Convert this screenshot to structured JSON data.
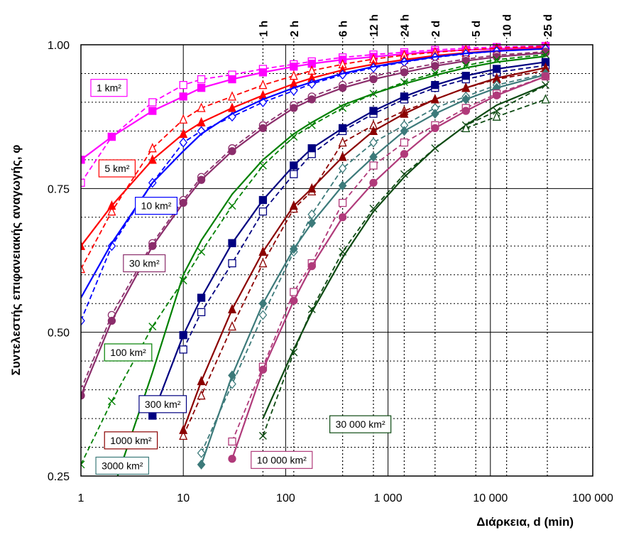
{
  "chart_data": {
    "type": "line",
    "xlabel": "Διάρκεια, d (min)",
    "ylabel": "Συντελεστής επιφανειακής αναγωγής, φ",
    "ylabel_symbol": "φ",
    "xscale": "log",
    "xlim": [
      1,
      100000
    ],
    "ylim": [
      0.25,
      1.0
    ],
    "grid": true,
    "x_ticks": [
      {
        "value": 1,
        "label": "1"
      },
      {
        "value": 10,
        "label": "10"
      },
      {
        "value": 100,
        "label": "100"
      },
      {
        "value": 1000,
        "label": "1 000"
      },
      {
        "value": 10000,
        "label": "10 000"
      },
      {
        "value": 100000,
        "label": "100 000"
      }
    ],
    "y_ticks": [
      {
        "value": 0.25,
        "label": "0.25"
      },
      {
        "value": 0.5,
        "label": "0.50"
      },
      {
        "value": 0.75,
        "label": "0.75"
      },
      {
        "value": 1.0,
        "label": "1.00"
      }
    ],
    "duration_markers": [
      {
        "value": 60,
        "label": "1 h"
      },
      {
        "value": 120,
        "label": "2 h"
      },
      {
        "value": 360,
        "label": "6 h"
      },
      {
        "value": 720,
        "label": "12 h"
      },
      {
        "value": 1440,
        "label": "24 h"
      },
      {
        "value": 2880,
        "label": "2 d"
      },
      {
        "value": 7200,
        "label": "5 d"
      },
      {
        "value": 14400,
        "label": "10 d"
      },
      {
        "value": 36000,
        "label": "25 d"
      }
    ],
    "series": [
      {
        "label": "1 km²",
        "color": "#ff00ff",
        "solid": {
          "marker": "square-filled",
          "x": [
            1,
            2,
            5,
            10,
            15,
            30,
            60,
            120,
            180,
            360,
            720,
            1440,
            2880,
            5760,
            11520,
            34560
          ],
          "y": [
            0.8,
            0.84,
            0.885,
            0.91,
            0.925,
            0.94,
            0.952,
            0.962,
            0.967,
            0.974,
            0.979,
            0.984,
            0.988,
            0.991,
            0.993,
            0.996
          ]
        },
        "dashed": {
          "marker": "square-open",
          "x": [
            1,
            2,
            5,
            10,
            15,
            30,
            60,
            120,
            180,
            360,
            720,
            1440,
            2880,
            5760,
            11520,
            34560
          ],
          "y": [
            0.76,
            0.84,
            0.9,
            0.93,
            0.94,
            0.948,
            0.958,
            0.966,
            0.971,
            0.978,
            0.983,
            0.987,
            0.991,
            0.994,
            0.996,
            0.998
          ]
        },
        "label_pos": [
          1.25,
          0.925
        ]
      },
      {
        "label": "5 km²",
        "color": "#ff0000",
        "solid": {
          "marker": "triangle-filled",
          "x": [
            1,
            2,
            5,
            10,
            15,
            30,
            60,
            120,
            180,
            360,
            720,
            1440,
            2880,
            5760,
            11520,
            34560
          ],
          "y": [
            0.65,
            0.72,
            0.8,
            0.845,
            0.865,
            0.89,
            0.912,
            0.932,
            0.942,
            0.956,
            0.966,
            0.974,
            0.981,
            0.986,
            0.99,
            0.994
          ]
        },
        "dashed": {
          "marker": "triangle-open",
          "x": [
            1,
            2,
            5,
            10,
            15,
            30,
            60,
            120,
            180,
            360,
            720,
            1440,
            2880,
            5760,
            11520,
            34560
          ],
          "y": [
            0.61,
            0.71,
            0.82,
            0.87,
            0.89,
            0.91,
            0.93,
            0.946,
            0.955,
            0.966,
            0.975,
            0.982,
            0.987,
            0.991,
            0.994,
            0.997
          ]
        },
        "label_pos": [
          1.5,
          0.785
        ]
      },
      {
        "label": "10 km²",
        "color": "#0000ff",
        "solid": {
          "marker": "none",
          "x": [
            1,
            2,
            5,
            10,
            15,
            30,
            60,
            120,
            180,
            360,
            720,
            1440,
            2880,
            5760,
            11520,
            34560
          ],
          "y": [
            0.56,
            0.655,
            0.76,
            0.815,
            0.845,
            0.88,
            0.905,
            0.925,
            0.935,
            0.95,
            0.962,
            0.971,
            0.979,
            0.985,
            0.989,
            0.993
          ]
        },
        "dashed": {
          "marker": "diamond-open",
          "x": [
            1,
            2,
            5,
            10,
            15,
            30,
            60,
            120,
            180,
            360,
            720,
            1440,
            2880,
            5760,
            11520,
            34560
          ],
          "y": [
            0.52,
            0.65,
            0.76,
            0.83,
            0.85,
            0.875,
            0.9,
            0.92,
            0.932,
            0.948,
            0.96,
            0.97,
            0.978,
            0.984,
            0.989,
            0.993
          ]
        },
        "label_pos": [
          3.4,
          0.72
        ]
      },
      {
        "label": "30 km²",
        "color": "#8b2d6b",
        "solid": {
          "marker": "circle-filled",
          "x": [
            1,
            2,
            5,
            10,
            15,
            30,
            60,
            120,
            180,
            360,
            720,
            1440,
            2880,
            5760,
            11520,
            34560
          ],
          "y": [
            0.39,
            0.52,
            0.65,
            0.725,
            0.765,
            0.815,
            0.855,
            0.89,
            0.905,
            0.925,
            0.94,
            0.952,
            0.963,
            0.972,
            0.979,
            0.986
          ]
        },
        "dashed": {
          "marker": "circle-open",
          "x": [
            1,
            2,
            5,
            10,
            15,
            30,
            60,
            120,
            180,
            360,
            720,
            1440,
            2880,
            5760,
            11520,
            34560
          ],
          "y": [
            0.4,
            0.53,
            0.655,
            0.73,
            0.77,
            0.82,
            0.86,
            0.895,
            0.91,
            0.93,
            0.945,
            0.957,
            0.967,
            0.975,
            0.982,
            0.988
          ]
        },
        "label_pos": [
          2.6,
          0.62
        ]
      },
      {
        "label": "100 km²",
        "color": "#008000",
        "solid": {
          "marker": "none",
          "x": [
            2,
            5,
            10,
            15,
            30,
            60,
            120,
            180,
            360,
            720,
            1440,
            2880,
            5760,
            11520,
            34560
          ],
          "y": [
            0.22,
            0.43,
            0.6,
            0.66,
            0.74,
            0.8,
            0.845,
            0.865,
            0.895,
            0.915,
            0.932,
            0.947,
            0.96,
            0.97,
            0.98
          ]
        },
        "dashed": {
          "marker": "x-mark",
          "x": [
            1,
            2,
            5,
            10,
            15,
            30,
            60,
            120,
            180,
            360,
            720,
            1440,
            2880,
            5760,
            11520,
            34560
          ],
          "y": [
            0.27,
            0.38,
            0.51,
            0.59,
            0.64,
            0.72,
            0.79,
            0.84,
            0.86,
            0.89,
            0.915,
            0.935,
            0.951,
            0.964,
            0.974,
            0.983
          ]
        },
        "label_pos": [
          1.7,
          0.465
        ]
      },
      {
        "label": "300 km²",
        "color": "#000080",
        "solid": {
          "marker": "square-filled",
          "x": [
            5,
            10,
            15,
            30,
            60,
            120,
            180,
            360,
            720,
            1440,
            2880,
            5760,
            11520,
            34560
          ],
          "y": [
            0.355,
            0.495,
            0.56,
            0.655,
            0.73,
            0.79,
            0.82,
            0.855,
            0.885,
            0.91,
            0.93,
            0.946,
            0.958,
            0.97
          ]
        },
        "dashed": {
          "marker": "square-open",
          "x": [
            10,
            15,
            30,
            60,
            120,
            180,
            360,
            720,
            1440,
            2880,
            5760,
            11520,
            34560
          ],
          "y": [
            0.47,
            0.535,
            0.62,
            0.71,
            0.775,
            0.81,
            0.85,
            0.88,
            0.905,
            0.925,
            0.94,
            0.952,
            0.964
          ]
        },
        "label_pos": [
          3.7,
          0.375
        ]
      },
      {
        "label": "1000 km²",
        "color": "#8b0000",
        "solid": {
          "marker": "triangle-filled",
          "x": [
            10,
            15,
            30,
            60,
            120,
            180,
            360,
            720,
            1440,
            2880,
            5760,
            11520,
            34560
          ],
          "y": [
            0.33,
            0.415,
            0.54,
            0.64,
            0.72,
            0.75,
            0.805,
            0.85,
            0.88,
            0.905,
            0.925,
            0.942,
            0.96
          ]
        },
        "dashed": {
          "marker": "triangle-open",
          "x": [
            10,
            15,
            30,
            60,
            120,
            180,
            360,
            720,
            1440,
            2880,
            5760,
            11520,
            34560
          ],
          "y": [
            0.32,
            0.39,
            0.51,
            0.62,
            0.715,
            0.745,
            0.83,
            0.86,
            0.885,
            0.905,
            0.925,
            0.94,
            0.955
          ]
        },
        "label_pos": [
          1.7,
          0.312
        ]
      },
      {
        "label": "3000 km²",
        "color": "#3c7a7a",
        "solid": {
          "marker": "diamond-filled",
          "x": [
            15,
            30,
            60,
            120,
            180,
            360,
            720,
            1440,
            2880,
            5760,
            11520,
            34560
          ],
          "y": [
            0.27,
            0.425,
            0.55,
            0.645,
            0.69,
            0.755,
            0.805,
            0.85,
            0.88,
            0.905,
            0.925,
            0.948
          ]
        },
        "dashed": {
          "marker": "diamond-open",
          "x": [
            15,
            30,
            60,
            120,
            180,
            360,
            720,
            1440,
            2880,
            5760,
            11520,
            34560
          ],
          "y": [
            0.29,
            0.41,
            0.53,
            0.64,
            0.705,
            0.785,
            0.83,
            0.86,
            0.89,
            0.91,
            0.93,
            0.95
          ]
        },
        "label_pos": [
          1.4,
          0.268
        ]
      },
      {
        "label": "10 000 km²",
        "color": "#b03a7a",
        "solid": {
          "marker": "circle-filled",
          "x": [
            30,
            60,
            120,
            180,
            360,
            720,
            1440,
            2880,
            5760,
            11520,
            34560
          ],
          "y": [
            0.28,
            0.435,
            0.555,
            0.615,
            0.7,
            0.76,
            0.81,
            0.855,
            0.885,
            0.912,
            0.945
          ]
        },
        "dashed": {
          "marker": "square-open",
          "x": [
            30,
            60,
            120,
            180,
            360,
            720,
            1440,
            2880,
            5760,
            11520,
            34560
          ],
          "y": [
            0.31,
            0.44,
            0.57,
            0.62,
            0.725,
            0.79,
            0.83,
            0.86,
            0.89,
            0.915,
            0.945
          ]
        },
        "label_pos": [
          46,
          0.278
        ]
      },
      {
        "label": "30 000 km²",
        "color": "#0d4a12",
        "solid": {
          "marker": "none",
          "x": [
            60,
            120,
            180,
            360,
            720,
            1440,
            2880,
            5760,
            11520,
            34560
          ],
          "y": [
            0.35,
            0.47,
            0.535,
            0.63,
            0.71,
            0.77,
            0.82,
            0.86,
            0.895,
            0.93
          ]
        },
        "dashed": {
          "marker": "x-mark",
          "x": [
            60,
            120,
            180,
            360,
            720,
            1440,
            2880,
            5760,
            11520,
            34560
          ],
          "y": [
            0.32,
            0.465,
            0.54,
            0.64,
            0.715,
            0.775,
            0.82,
            0.86,
            0.885,
            0.93
          ]
        },
        "extra": {
          "marker": "triangle-open",
          "x": [
            5760,
            11520,
            34560
          ],
          "y": [
            0.855,
            0.875,
            0.905
          ]
        },
        "label_pos": [
          270,
          0.34
        ]
      }
    ]
  }
}
